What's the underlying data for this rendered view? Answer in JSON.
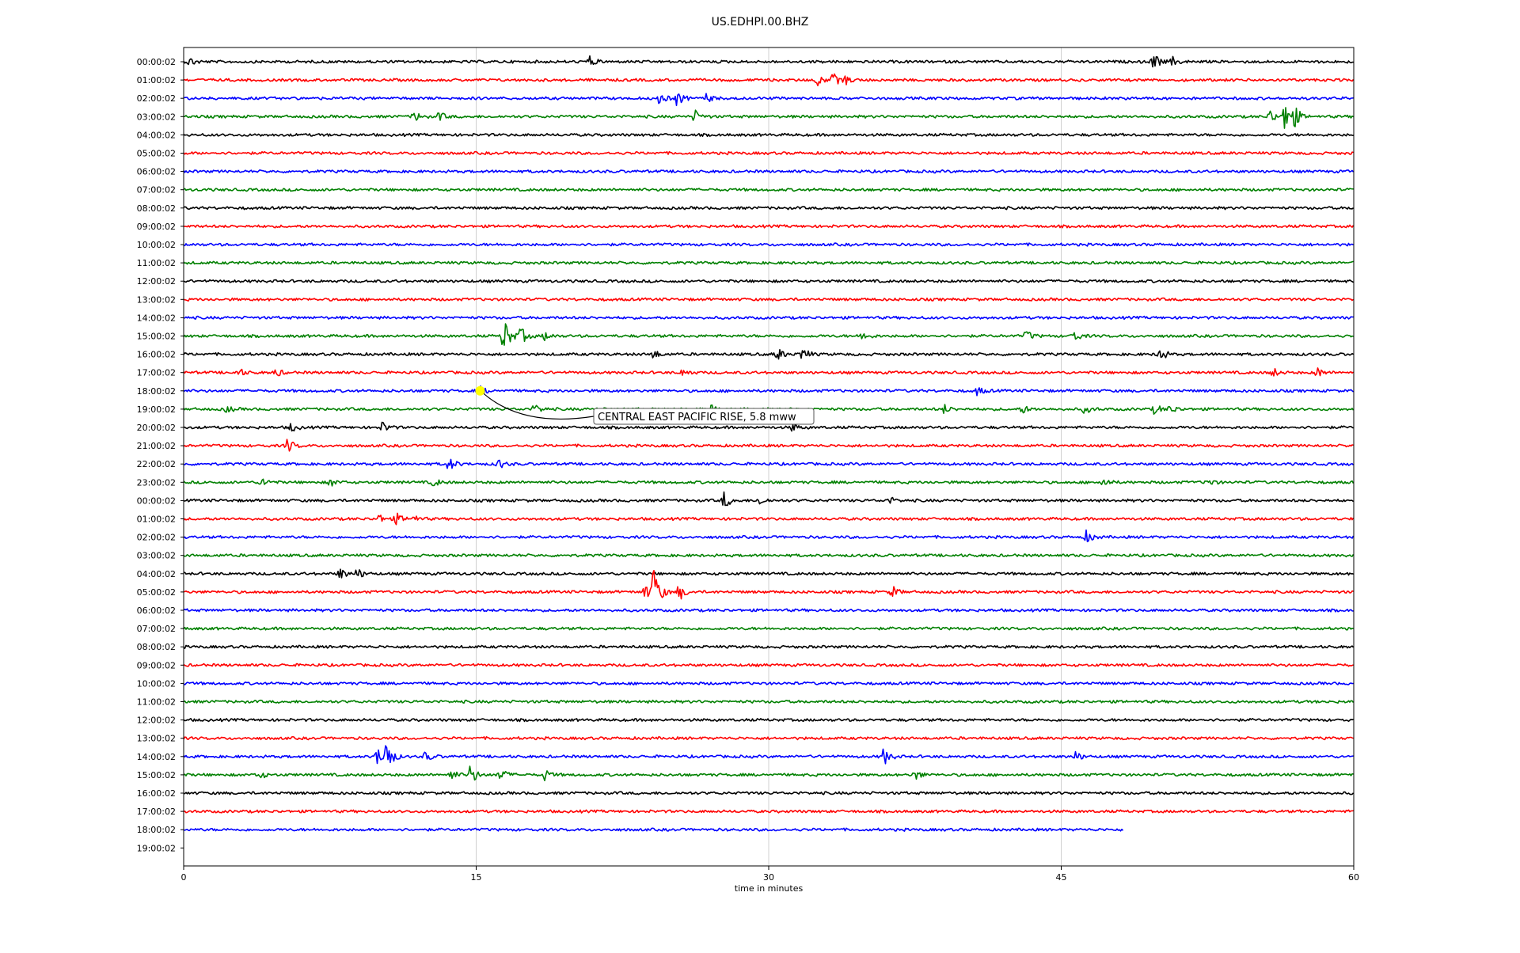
{
  "chart_data": {
    "type": "line",
    "title": "US.EDHPI.00.BHZ",
    "xlabel": "time in minutes",
    "ylabel": "",
    "xlim": [
      0,
      60
    ],
    "x_ticks": [
      "0",
      "15",
      "30",
      "45",
      "60"
    ],
    "grid": "vertical",
    "line_colors": [
      "#000000",
      "#ff0000",
      "#0000ff",
      "#008000"
    ],
    "rows": [
      {
        "label": "00:00:02",
        "end": 60,
        "events": [
          [
            0.3,
            0.4
          ],
          [
            20.8,
            0.5
          ],
          [
            49.7,
            0.9
          ],
          [
            50.7,
            0.4
          ]
        ]
      },
      {
        "label": "01:00:02",
        "end": 60,
        "events": [
          [
            32.5,
            0.5
          ],
          [
            33.3,
            0.6
          ],
          [
            33.9,
            0.4
          ]
        ]
      },
      {
        "label": "02:00:02",
        "end": 60,
        "events": [
          [
            24.4,
            0.6
          ],
          [
            25.3,
            0.7
          ],
          [
            26.8,
            0.4
          ]
        ]
      },
      {
        "label": "03:00:02",
        "end": 60,
        "events": [
          [
            11.8,
            0.5
          ],
          [
            13.1,
            0.4
          ],
          [
            26.2,
            0.6
          ],
          [
            56.5,
            2.3
          ],
          [
            55.7,
            0.7
          ],
          [
            57.0,
            0.6
          ]
        ]
      },
      {
        "label": "04:00:02",
        "end": 60,
        "events": []
      },
      {
        "label": "05:00:02",
        "end": 60,
        "events": []
      },
      {
        "label": "06:00:02",
        "end": 60,
        "events": []
      },
      {
        "label": "07:00:02",
        "end": 60,
        "events": []
      },
      {
        "label": "08:00:02",
        "end": 60,
        "events": []
      },
      {
        "label": "09:00:02",
        "end": 60,
        "events": []
      },
      {
        "label": "10:00:02",
        "end": 60,
        "events": []
      },
      {
        "label": "11:00:02",
        "end": 60,
        "events": []
      },
      {
        "label": "12:00:02",
        "end": 60,
        "events": []
      },
      {
        "label": "13:00:02",
        "end": 60,
        "events": []
      },
      {
        "label": "14:00:02",
        "end": 60,
        "events": []
      },
      {
        "label": "15:00:02",
        "end": 60,
        "events": [
          [
            16.4,
            2.0
          ],
          [
            17.3,
            0.8
          ],
          [
            18.5,
            0.4
          ],
          [
            34.8,
            0.5
          ],
          [
            43.2,
            0.5
          ],
          [
            45.6,
            0.6
          ]
        ]
      },
      {
        "label": "16:00:02",
        "end": 60,
        "events": [
          [
            24.0,
            0.5
          ],
          [
            30.4,
            0.7
          ],
          [
            31.7,
            0.8
          ],
          [
            50.0,
            0.8
          ]
        ]
      },
      {
        "label": "17:00:02",
        "end": 60,
        "events": [
          [
            2.8,
            0.4
          ],
          [
            4.7,
            0.4
          ],
          [
            25.6,
            0.4
          ],
          [
            55.8,
            0.5
          ],
          [
            58.1,
            0.5
          ]
        ]
      },
      {
        "label": "18:00:02",
        "end": 60,
        "events": [
          [
            15.2,
            0.4
          ],
          [
            40.7,
            0.4
          ]
        ]
      },
      {
        "label": "19:00:02",
        "end": 60,
        "events": [
          [
            2.2,
            0.3
          ],
          [
            18.0,
            0.5
          ],
          [
            27.0,
            0.4
          ],
          [
            39.0,
            0.4
          ],
          [
            43.0,
            0.4
          ],
          [
            46.2,
            0.4
          ],
          [
            49.8,
            0.5
          ],
          [
            50.6,
            0.4
          ]
        ]
      },
      {
        "label": "20:00:02",
        "end": 60,
        "events": [
          [
            5.5,
            0.4
          ],
          [
            10.2,
            0.5
          ],
          [
            31.2,
            0.4
          ]
        ]
      },
      {
        "label": "21:00:02",
        "end": 60,
        "events": [
          [
            5.3,
            0.7
          ]
        ]
      },
      {
        "label": "22:00:02",
        "end": 60,
        "events": [
          [
            13.6,
            0.7
          ],
          [
            16.1,
            0.5
          ]
        ]
      },
      {
        "label": "23:00:02",
        "end": 60,
        "events": [
          [
            4.0,
            0.5
          ],
          [
            7.5,
            0.4
          ],
          [
            12.8,
            0.4
          ],
          [
            47.1,
            0.5
          ],
          [
            52.5,
            0.4
          ]
        ]
      },
      {
        "label": "00:00:02",
        "end": 60,
        "events": [
          [
            27.7,
            0.8
          ],
          [
            29.5,
            0.4
          ],
          [
            36.2,
            0.3
          ]
        ]
      },
      {
        "label": "01:00:02",
        "end": 60,
        "events": [
          [
            10.0,
            0.4
          ],
          [
            10.9,
            0.5
          ],
          [
            11.7,
            0.4
          ]
        ]
      },
      {
        "label": "02:00:02",
        "end": 60,
        "events": [
          [
            46.3,
            0.6
          ]
        ]
      },
      {
        "label": "03:00:02",
        "end": 60,
        "events": []
      },
      {
        "label": "04:00:02",
        "end": 60,
        "events": [
          [
            8.0,
            0.6
          ],
          [
            8.9,
            0.5
          ]
        ]
      },
      {
        "label": "05:00:02",
        "end": 60,
        "events": [
          [
            24.1,
            2.6
          ],
          [
            23.6,
            0.8
          ],
          [
            25.4,
            0.8
          ],
          [
            36.3,
            0.6
          ]
        ]
      },
      {
        "label": "06:00:02",
        "end": 60,
        "events": []
      },
      {
        "label": "07:00:02",
        "end": 60,
        "events": []
      },
      {
        "label": "08:00:02",
        "end": 60,
        "events": []
      },
      {
        "label": "09:00:02",
        "end": 60,
        "events": []
      },
      {
        "label": "10:00:02",
        "end": 60,
        "events": []
      },
      {
        "label": "11:00:02",
        "end": 60,
        "events": []
      },
      {
        "label": "12:00:02",
        "end": 60,
        "events": []
      },
      {
        "label": "13:00:02",
        "end": 60,
        "events": []
      },
      {
        "label": "14:00:02",
        "end": 60,
        "events": [
          [
            10.3,
            2.3
          ],
          [
            9.9,
            0.8
          ],
          [
            12.4,
            0.5
          ],
          [
            35.9,
            0.8
          ],
          [
            45.7,
            0.5
          ]
        ]
      },
      {
        "label": "15:00:02",
        "end": 60,
        "events": [
          [
            3.8,
            0.5
          ],
          [
            13.7,
            0.5
          ],
          [
            14.7,
            1.0
          ],
          [
            16.2,
            0.7
          ],
          [
            18.5,
            0.5
          ],
          [
            37.5,
            0.5
          ]
        ]
      },
      {
        "label": "16:00:02",
        "end": 60,
        "events": []
      },
      {
        "label": "17:00:02",
        "end": 60,
        "events": []
      },
      {
        "label": "18:00:02",
        "end": 48.2,
        "events": []
      },
      {
        "label": "19:00:02",
        "end": 0,
        "events": []
      }
    ],
    "annotation": {
      "text": "CENTRAL EAST PACIFIC RISE, 5.8 mww",
      "row": 18,
      "time": 15.2,
      "marker_color": "#ffff00"
    }
  }
}
